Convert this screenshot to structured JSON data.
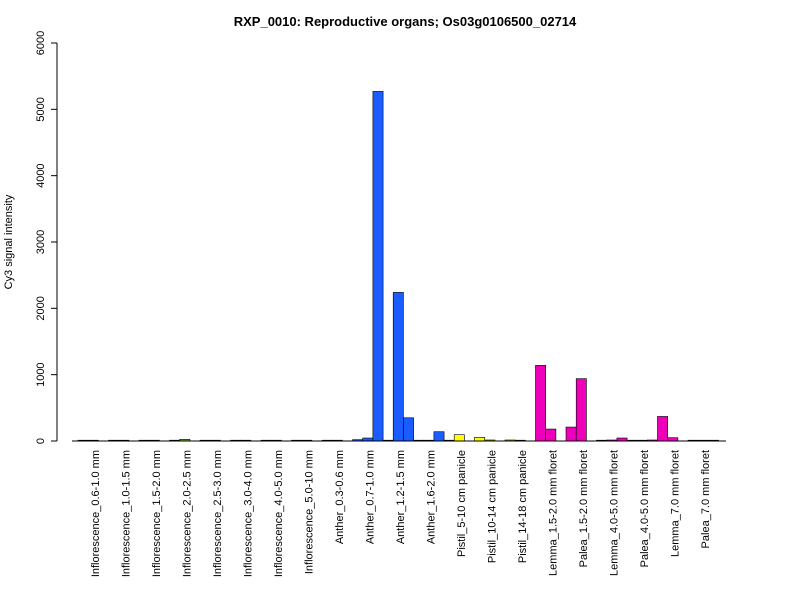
{
  "chart_data": {
    "type": "bar",
    "title": "RXP_0010: Reproductive organs; Os03g0106500_02714",
    "ylabel": "Cy3 signal intensity",
    "xlabel": "",
    "ylim": [
      0,
      6000
    ],
    "yticks": [
      0,
      1000,
      2000,
      3000,
      4000,
      5000,
      6000
    ],
    "grid": false,
    "categories": [
      {
        "label": "Inflorescence_0.6-1.0 mm",
        "color": "#1a1a1a",
        "values": [
          2,
          1
        ]
      },
      {
        "label": "Inflorescence_1.0-1.5 mm",
        "color": "#1a1a1a",
        "values": [
          2,
          1
        ]
      },
      {
        "label": "Inflorescence_1.5-2.0 mm",
        "color": "#1a1a1a",
        "values": [
          1,
          1
        ]
      },
      {
        "label": "Inflorescence_2.0-2.5 mm",
        "color": "#66cc33",
        "values": [
          5,
          25
        ]
      },
      {
        "label": "Inflorescence_2.5-3.0 mm",
        "color": "#1a1a1a",
        "values": [
          2,
          1
        ]
      },
      {
        "label": "Inflorescence_3.0-4.0 mm",
        "color": "#1a1a1a",
        "values": [
          1,
          1
        ]
      },
      {
        "label": "Inflorescence_4.0-5.0 mm",
        "color": "#1a1a1a",
        "values": [
          1,
          1
        ]
      },
      {
        "label": "Inflorescence_5.0-10 mm",
        "color": "#1a1a1a",
        "values": [
          2,
          1
        ]
      },
      {
        "label": "Anther_0.3-0.6 mm",
        "color": "#1a1a1a",
        "values": [
          5,
          5
        ]
      },
      {
        "label": "Anther_0.7-1.0 mm",
        "color": "#1a5cff",
        "values": [
          20,
          45,
          5270
        ]
      },
      {
        "label": "Anther_1.2-1.5 mm",
        "color": "#1a5cff",
        "values": [
          10,
          2240,
          350
        ]
      },
      {
        "label": "Anther_1.6-2.0 mm",
        "color": "#1a5cff",
        "values": [
          5,
          5,
          140
        ]
      },
      {
        "label": "Pistil_5-10 cm panicle",
        "color": "#ffff00",
        "values": [
          5,
          95
        ]
      },
      {
        "label": "Pistil_10-14 cm panicle",
        "color": "#ffff00",
        "values": [
          55,
          15
        ]
      },
      {
        "label": "Pistil_14-18 cm panicle",
        "color": "#ffff00",
        "values": [
          15,
          10
        ]
      },
      {
        "label": "Lemma_1.5-2.0 mm floret",
        "color": "#ee00bb",
        "values": [
          1140,
          180
        ]
      },
      {
        "label": "Palea_1.5-2.0 mm floret",
        "color": "#ee00bb",
        "values": [
          210,
          940
        ]
      },
      {
        "label": "Lemma_4.0-5.0 mm floret",
        "color": "#ee00bb",
        "values": [
          10,
          15,
          45
        ]
      },
      {
        "label": "Palea_4.0-5.0 mm floret",
        "color": "#ee00bb",
        "values": [
          10,
          10,
          15
        ]
      },
      {
        "label": "Lemma_7.0 mm floret",
        "color": "#ee00bb",
        "values": [
          370,
          50
        ]
      },
      {
        "label": "Palea_7.0 mm floret",
        "color": "#ee00bb",
        "values": [
          5,
          5,
          5
        ]
      }
    ]
  }
}
